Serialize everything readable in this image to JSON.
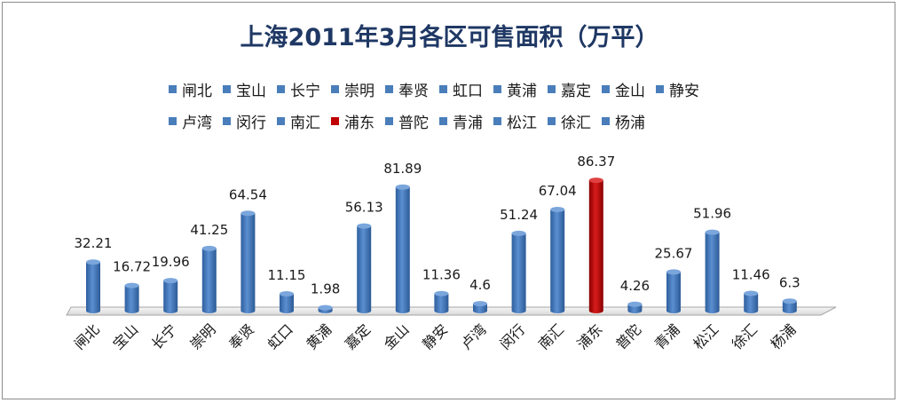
{
  "chart_data": {
    "type": "bar",
    "title": "上海2011年3月各区可售面积（万平）",
    "categories": [
      "闸北",
      "宝山",
      "长宁",
      "崇明",
      "奉贤",
      "虹口",
      "黄浦",
      "嘉定",
      "金山",
      "静安",
      "卢湾",
      "闵行",
      "南汇",
      "浦东",
      "普陀",
      "青浦",
      "松江",
      "徐汇",
      "杨浦"
    ],
    "values": [
      32.21,
      16.72,
      19.96,
      41.25,
      64.54,
      11.15,
      1.98,
      56.13,
      81.89,
      11.36,
      4.6,
      51.24,
      67.04,
      86.37,
      4.26,
      25.67,
      51.96,
      11.46,
      6.3
    ],
    "value_labels": [
      "32.21",
      "16.72",
      "19.96",
      "41.25",
      "64.54",
      "11.15",
      "1.98",
      "56.13",
      "81.89",
      "11.36",
      "4.6",
      "51.24",
      "67.04",
      "86.37",
      "4.26",
      "25.67",
      "51.96",
      "11.46",
      "6.3"
    ],
    "colors": {
      "default": "#4a7ebb",
      "highlight": "#c00000"
    },
    "highlight_category": "浦东",
    "legend_position": "top",
    "grid": false,
    "ylim": [
      0,
      100
    ]
  }
}
